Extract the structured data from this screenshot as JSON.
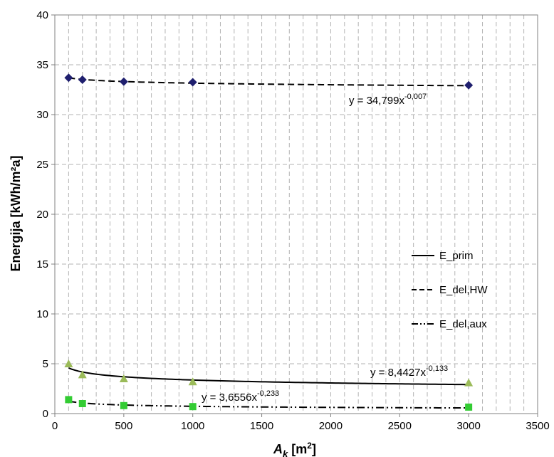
{
  "chart_data": {
    "type": "scatter",
    "title": "",
    "xlabel": {
      "main": "A",
      "sub": "k",
      "unit_open": " [m",
      "unit_sup": "2",
      "unit_close": "]"
    },
    "ylabel": "Energija [kWh/m²a]",
    "xlim": [
      0,
      3500
    ],
    "ylim": [
      0,
      40
    ],
    "x_ticks": [
      0,
      500,
      1000,
      1500,
      2000,
      2500,
      3000,
      3500
    ],
    "y_ticks": [
      0,
      5,
      10,
      15,
      20,
      25,
      30,
      35,
      40
    ],
    "grid": true,
    "legend_position": "right",
    "x": [
      100,
      200,
      500,
      1000,
      3000
    ],
    "series": [
      {
        "name": "E_prim",
        "marker": "triangle",
        "marker_color": "#9bbb59",
        "line_style": "solid",
        "values": [
          5.0,
          3.9,
          3.5,
          3.2,
          3.1
        ],
        "trend": {
          "a": 8.4427,
          "b": -0.133
        },
        "equation": {
          "base": "y = 8,4427x",
          "exp": "-0,133"
        }
      },
      {
        "name": "E_del,HW",
        "marker": "diamond",
        "marker_color": "#1f1f6e",
        "line_style": "dashed",
        "values": [
          33.7,
          33.5,
          33.3,
          33.25,
          32.95
        ],
        "trend": {
          "a": 34.799,
          "b": -0.007
        },
        "equation": {
          "base": "y = 34,799x",
          "exp": "-0,007"
        }
      },
      {
        "name": "E_del,aux",
        "marker": "square",
        "marker_color": "#33cc33",
        "line_style": "dash-dot-dot",
        "values": [
          1.4,
          1.0,
          0.8,
          0.7,
          0.65
        ],
        "trend": {
          "a": 3.6556,
          "b": -0.233
        },
        "equation": {
          "base": "y = 3,6556x",
          "exp": "-0,233"
        }
      }
    ]
  }
}
